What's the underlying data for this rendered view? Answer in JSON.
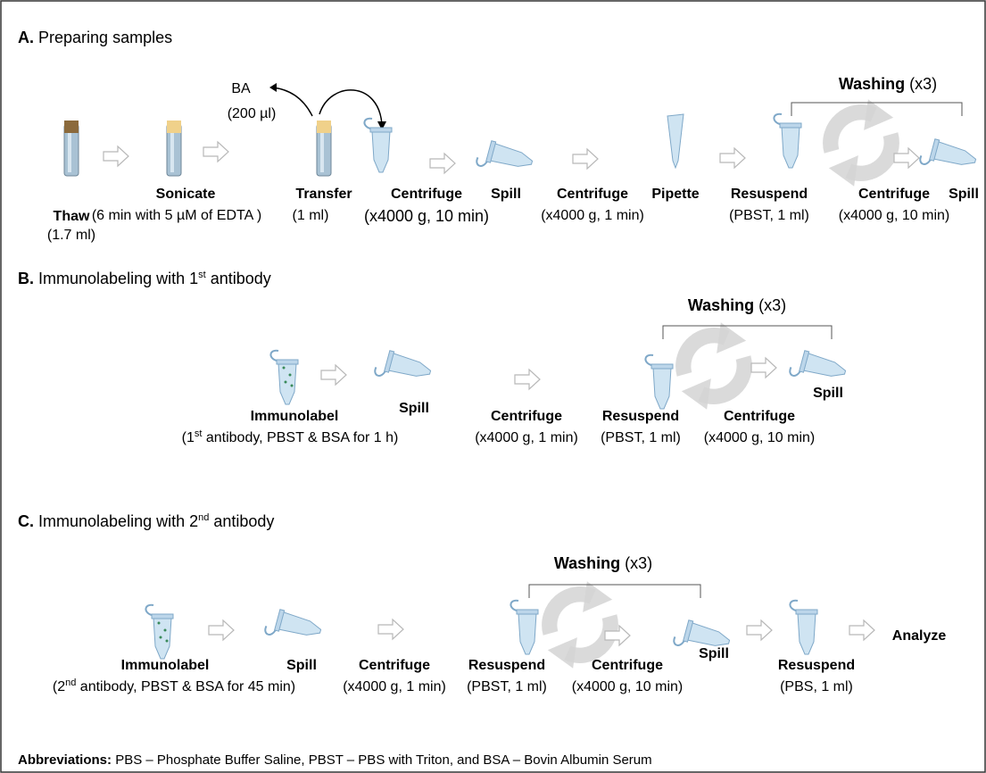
{
  "sections": [
    {
      "label": "A.",
      "title": "Preparing samples",
      "washing": "Washing",
      "repeat": "(x3)",
      "side_output": {
        "name": "BA",
        "detail": "(200 µl)"
      },
      "steps": [
        {
          "name": "Thaw",
          "detail": "(1.7 ml)"
        },
        {
          "name": "Sonicate",
          "detail": "(6 min with 5 µM of EDTA )"
        },
        {
          "name": "Transfer",
          "detail": "(1 ml)"
        },
        {
          "name": "Centrifuge",
          "detail": "(x4000 g, 10 min)"
        },
        {
          "name": "Spill"
        },
        {
          "name": "Centrifuge",
          "detail": "(x4000 g, 1 min)"
        },
        {
          "name": "Pipette"
        },
        {
          "name": "Resuspend",
          "detail": "(PBST, 1 ml)"
        },
        {
          "name": "Centrifuge",
          "detail": "(x4000 g, 10 min)"
        },
        {
          "name": "Spill"
        }
      ]
    },
    {
      "label": "B.",
      "title": [
        "Immunolabeling with 1",
        "st",
        " antibody"
      ],
      "washing": "Washing",
      "repeat": "(x3)",
      "steps": [
        {
          "name": "Immunolabel",
          "detail": [
            "(1",
            "st",
            " antibody, PBST & BSA for 1 h)"
          ]
        },
        {
          "name": "Spill"
        },
        {
          "name": "Centrifuge",
          "detail": "(x4000 g, 1 min)"
        },
        {
          "name": "Resuspend",
          "detail": "(PBST, 1 ml)"
        },
        {
          "name": "Centrifuge",
          "detail": "(x4000 g, 10 min)"
        },
        {
          "name": "Spill"
        }
      ]
    },
    {
      "label": "C.",
      "title": [
        "Immunolabeling with 2",
        "nd",
        " antibody"
      ],
      "washing": "Washing",
      "repeat": "(x3)",
      "steps": [
        {
          "name": "Immunolabel",
          "detail": [
            "(2",
            "nd",
            " antibody, PBST & BSA for 45 min)"
          ]
        },
        {
          "name": "Spill"
        },
        {
          "name": "Centrifuge",
          "detail": "(x4000 g, 1 min)"
        },
        {
          "name": "Resuspend",
          "detail": "(PBST, 1 ml)"
        },
        {
          "name": "Centrifuge",
          "detail": "(x4000 g, 10 min)"
        },
        {
          "name": "Spill"
        },
        {
          "name": "Resuspend",
          "detail": "(PBS, 1 ml)"
        },
        {
          "name": "Analyze"
        }
      ]
    }
  ],
  "abbreviations": {
    "label": "Abbreviations:",
    "text": "PBS – Phosphate Buffer Saline, PBST – PBS with Triton, and BSA – Bovin Albumin Serum"
  }
}
